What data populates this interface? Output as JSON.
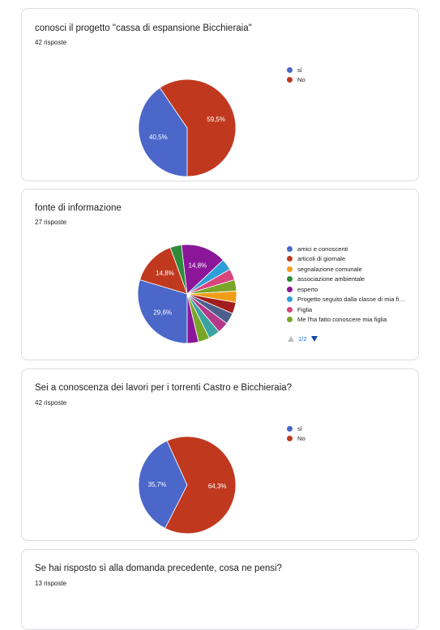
{
  "cards": [
    {
      "title": "conosci il progetto \"cassa di espansione Bicchieraia\"",
      "count": "42 risposte"
    },
    {
      "title": "fonte di informazione",
      "count": "27 risposte"
    },
    {
      "title": "Sei a conoscenza dei lavori per i torrenti Castro e Bicchieraia?",
      "count": "42 risposte"
    },
    {
      "title": "Se hai risposto sì alla domanda precedente, cosa ne pensi?",
      "count": "13 risposte"
    }
  ],
  "pager": {
    "text": "1/2"
  },
  "colors": {
    "blue": "#4a67c9",
    "red": "#c0391f",
    "orange": "#f29d19",
    "green": "#2e8b3a",
    "purple": "#8b1699",
    "light_blue": "#2e9fd6",
    "pink": "#d8457c",
    "olive": "#79a628",
    "darkred": "#a11d1d",
    "slate": "#4c5f8c",
    "magenta": "#b4398a",
    "teal": "#3aa2a0"
  },
  "chart_data": [
    {
      "type": "pie",
      "title": "conosci il progetto \"cassa di espansione Bicchieraia\"",
      "labels": [
        "sì",
        "No"
      ],
      "values": [
        40.5,
        59.5
      ],
      "colors": [
        "#4a67c9",
        "#c0391f"
      ],
      "data_labels": [
        "40,5%",
        "59,5%"
      ],
      "legend": "right"
    },
    {
      "type": "pie",
      "title": "fonte di informazione",
      "labels": [
        "amici e conoscenti",
        "articoli di giornale",
        "segnalazione comunale",
        "associazione ambientale",
        "esperto",
        "Progetto seguito dalla classe di mia fi…",
        "Figlia",
        "Me l'ha fatto conoscere mia figlia"
      ],
      "slice_values": [
        29.6,
        14.8,
        3.7,
        14.8,
        3.7,
        3.7,
        3.7,
        3.7,
        3.7,
        3.7,
        3.7,
        3.7,
        3.7,
        3.7
      ],
      "slice_colors": [
        "#4a67c9",
        "#c0391f",
        "#2e8b3a",
        "#8b1699",
        "#2e9fd6",
        "#d8457c",
        "#79a628",
        "#f29d19",
        "#a11d1d",
        "#4c5f8c",
        "#b4398a",
        "#3aa2a0",
        "#79a628",
        "#8b1699"
      ],
      "slice_data_labels": [
        "29,6%",
        "14,8%",
        "",
        "14,8%",
        "",
        "",
        "",
        "",
        "",
        "",
        "",
        "",
        "",
        ""
      ],
      "legend_colors": [
        "#4a67c9",
        "#c0391f",
        "#f29d19",
        "#2e8b3a",
        "#8b1699",
        "#2e9fd6",
        "#d8457c",
        "#79a628"
      ],
      "legend": "right"
    },
    {
      "type": "pie",
      "title": "Sei a conoscenza dei lavori per i torrenti Castro e Bicchieraia?",
      "labels": [
        "sì",
        "No"
      ],
      "values": [
        35.7,
        64.3
      ],
      "colors": [
        "#4a67c9",
        "#c0391f"
      ],
      "data_labels": [
        "35,7%",
        "64,3%"
      ],
      "legend": "right"
    }
  ]
}
